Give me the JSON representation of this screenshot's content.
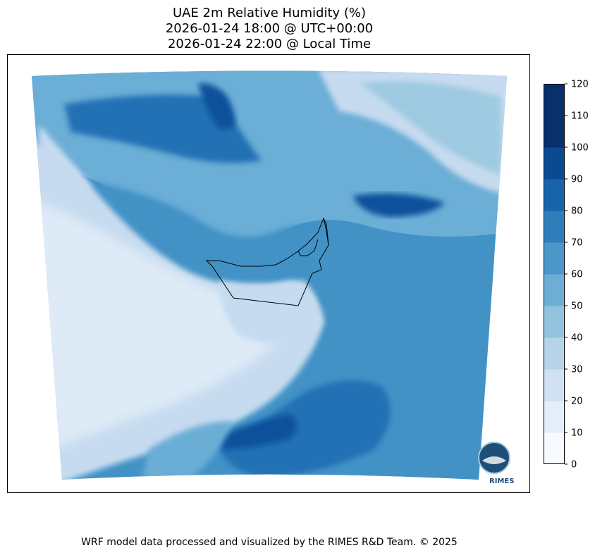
{
  "title": {
    "line1": "UAE 2m Relative Humidity (%)",
    "line2": "2026-01-24 18:00 @ UTC+00:00",
    "line3": "2026-01-24 22:00 @ Local Time"
  },
  "colorbar": {
    "ticks": [
      "0",
      "10",
      "20",
      "30",
      "40",
      "50",
      "60",
      "70",
      "80",
      "90",
      "100",
      "110",
      "120"
    ],
    "colors": [
      "#f7fbff",
      "#e3eef9",
      "#cfe1f2",
      "#b5d4e9",
      "#93c3df",
      "#6daed5",
      "#4b97c9",
      "#2f7ebc",
      "#1864aa",
      "#0a4a90",
      "#08306b",
      "#08306b"
    ]
  },
  "logo": {
    "label": "RIMES"
  },
  "footer": "WRF model data processed and visualized by the RIMES R&D Team. © 2025",
  "map": {
    "region": "UAE",
    "variable": "2m Relative Humidity",
    "colormap": "Blues"
  }
}
